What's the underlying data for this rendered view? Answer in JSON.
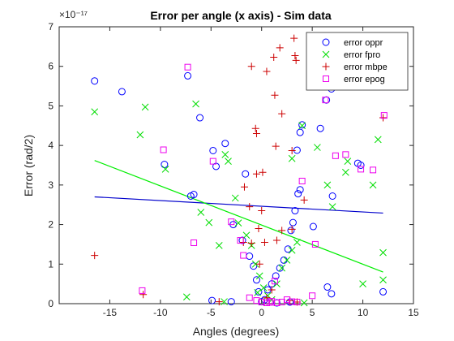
{
  "chart_data": {
    "type": "scatter",
    "title": "Error per angle (x axis)  - Sim data",
    "xlabel": "Angles (degrees)",
    "ylabel": "Error (rad/2)",
    "y_multiplier_label": "×10⁻¹⁷",
    "xlim": [
      -20,
      15
    ],
    "ylim": [
      0,
      7
    ],
    "xticks": [
      -15,
      -10,
      -5,
      0,
      5,
      10,
      15
    ],
    "yticks": [
      0,
      1,
      2,
      3,
      4,
      5,
      6,
      7
    ],
    "xtick_labels": [
      "-15",
      "-10",
      "-5",
      "0",
      "5",
      "10",
      "15"
    ],
    "ytick_labels": [
      "0",
      "1",
      "2",
      "3",
      "4",
      "5",
      "6",
      "7"
    ],
    "grid": false,
    "legend_position": "top-right",
    "series": [
      {
        "name": "error oppr",
        "marker": "circle",
        "color": "#0000ff",
        "points": [
          [
            -16.5,
            5.63
          ],
          [
            -13.8,
            5.36
          ],
          [
            -9.6,
            3.52
          ],
          [
            -7.3,
            5.76
          ],
          [
            -6.1,
            4.7
          ],
          [
            -7.0,
            2.72
          ],
          [
            -6.7,
            2.76
          ],
          [
            -4.8,
            3.87
          ],
          [
            -4.5,
            3.47
          ],
          [
            -3.6,
            4.05
          ],
          [
            -1.6,
            3.28
          ],
          [
            -2.8,
            2.0
          ],
          [
            -1.9,
            1.6
          ],
          [
            -1.2,
            1.2
          ],
          [
            -0.8,
            0.95
          ],
          [
            -0.5,
            0.6
          ],
          [
            -0.3,
            0.3
          ],
          [
            0.0,
            0.05
          ],
          [
            0.3,
            0.1
          ],
          [
            0.6,
            0.35
          ],
          [
            1.0,
            0.5
          ],
          [
            1.4,
            0.7
          ],
          [
            1.8,
            0.9
          ],
          [
            2.2,
            1.1
          ],
          [
            2.6,
            1.38
          ],
          [
            2.9,
            1.85
          ],
          [
            3.1,
            2.05
          ],
          [
            3.3,
            2.35
          ],
          [
            3.6,
            2.78
          ],
          [
            3.8,
            2.88
          ],
          [
            3.5,
            3.88
          ],
          [
            3.8,
            4.33
          ],
          [
            4.0,
            4.52
          ],
          [
            5.8,
            4.43
          ],
          [
            6.4,
            5.15
          ],
          [
            6.9,
            5.43
          ],
          [
            7.0,
            2.72
          ],
          [
            9.5,
            3.55
          ],
          [
            9.8,
            3.5
          ],
          [
            6.5,
            0.42
          ],
          [
            6.9,
            0.25
          ],
          [
            12.0,
            0.3
          ],
          [
            -4.9,
            0.08
          ],
          [
            -3.0,
            0.05
          ],
          [
            1.5,
            0.02
          ],
          [
            2.8,
            0.04
          ],
          [
            5.1,
            1.95
          ]
        ]
      },
      {
        "name": "error fpro",
        "marker": "x",
        "color": "#00dd00",
        "points": [
          [
            -16.5,
            4.85
          ],
          [
            -12.0,
            4.27
          ],
          [
            -11.5,
            4.97
          ],
          [
            -9.5,
            3.4
          ],
          [
            -7.4,
            0.17
          ],
          [
            -6.5,
            5.05
          ],
          [
            -6.0,
            2.31
          ],
          [
            -5.2,
            2.05
          ],
          [
            -3.6,
            3.77
          ],
          [
            -3.3,
            3.6
          ],
          [
            -2.6,
            2.67
          ],
          [
            -2.3,
            2.04
          ],
          [
            -1.5,
            1.73
          ],
          [
            -1.0,
            1.47
          ],
          [
            -0.6,
            1.0
          ],
          [
            -0.2,
            0.7
          ],
          [
            0.2,
            0.4
          ],
          [
            0.6,
            0.2
          ],
          [
            1.0,
            0.1
          ],
          [
            1.5,
            0.5
          ],
          [
            2.0,
            0.9
          ],
          [
            2.5,
            1.1
          ],
          [
            3.0,
            1.35
          ],
          [
            3.5,
            1.55
          ],
          [
            3.0,
            3.67
          ],
          [
            4.0,
            4.5
          ],
          [
            5.5,
            3.95
          ],
          [
            6.5,
            3.0
          ],
          [
            7.0,
            2.45
          ],
          [
            8.3,
            3.32
          ],
          [
            8.5,
            3.6
          ],
          [
            11.0,
            3.0
          ],
          [
            11.5,
            4.15
          ],
          [
            12.0,
            1.29
          ],
          [
            12.0,
            0.6
          ],
          [
            10.0,
            0.5
          ],
          [
            -4.2,
            1.47
          ],
          [
            -3.7,
            0.05
          ],
          [
            4.2,
            0.02
          ],
          [
            -0.4,
            0.28
          ]
        ]
      },
      {
        "name": "error mbpe",
        "marker": "plus",
        "color": "#cc0000",
        "points": [
          [
            -16.5,
            1.22
          ],
          [
            -1.0,
            6.0
          ],
          [
            0.5,
            5.87
          ],
          [
            1.2,
            6.23
          ],
          [
            1.8,
            6.47
          ],
          [
            1.3,
            5.27
          ],
          [
            2.0,
            4.8
          ],
          [
            3.2,
            6.71
          ],
          [
            3.3,
            6.27
          ],
          [
            3.4,
            6.15
          ],
          [
            -0.6,
            4.43
          ],
          [
            -0.5,
            4.3
          ],
          [
            0.1,
            3.32
          ],
          [
            -0.5,
            3.28
          ],
          [
            1.4,
            3.98
          ],
          [
            3.0,
            3.87
          ],
          [
            -1.7,
            2.95
          ],
          [
            -1.2,
            2.45
          ],
          [
            0.0,
            2.35
          ],
          [
            -0.3,
            1.9
          ],
          [
            1.5,
            1.6
          ],
          [
            0.3,
            1.55
          ],
          [
            -1.0,
            1.53
          ],
          [
            -1.8,
            1.55
          ],
          [
            2.0,
            1.85
          ],
          [
            4.2,
            2.62
          ],
          [
            12.0,
            4.7
          ],
          [
            -11.7,
            0.23
          ],
          [
            -4.2,
            0.05
          ],
          [
            2.8,
            0.08
          ],
          [
            3.5,
            0.04
          ],
          [
            1.0,
            0.35
          ],
          [
            0.5,
            0.15
          ],
          [
            3.0,
            1.88
          ],
          [
            -0.2,
            1.0
          ]
        ]
      },
      {
        "name": "error epog",
        "marker": "square",
        "color": "#ee00ee",
        "points": [
          [
            -11.8,
            0.33
          ],
          [
            -9.7,
            3.89
          ],
          [
            -7.3,
            5.98
          ],
          [
            -6.7,
            1.54
          ],
          [
            -4.8,
            3.6
          ],
          [
            -3.0,
            2.07
          ],
          [
            -2.1,
            1.6
          ],
          [
            -1.8,
            1.22
          ],
          [
            -1.2,
            0.15
          ],
          [
            -0.5,
            0.08
          ],
          [
            0.0,
            0.04
          ],
          [
            0.5,
            0.02
          ],
          [
            1.0,
            0.06
          ],
          [
            1.5,
            0.02
          ],
          [
            2.0,
            0.04
          ],
          [
            2.5,
            0.1
          ],
          [
            3.0,
            0.05
          ],
          [
            3.5,
            0.04
          ],
          [
            4.0,
            3.1
          ],
          [
            5.3,
            1.5
          ],
          [
            6.3,
            5.15
          ],
          [
            7.3,
            3.74
          ],
          [
            8.3,
            3.77
          ],
          [
            9.8,
            3.4
          ],
          [
            11.0,
            3.38
          ],
          [
            12.1,
            4.76
          ],
          [
            5.0,
            0.2
          ],
          [
            1.3,
            0.57
          ],
          [
            0.8,
            0.03
          ]
        ]
      }
    ],
    "fit_lines": [
      {
        "color": "#0000cc",
        "from": [
          -16.5,
          2.7
        ],
        "to": [
          12.0,
          2.29
        ]
      },
      {
        "color": "#00ee00",
        "from": [
          -16.5,
          3.62
        ],
        "to": [
          12.0,
          0.8
        ]
      }
    ]
  }
}
